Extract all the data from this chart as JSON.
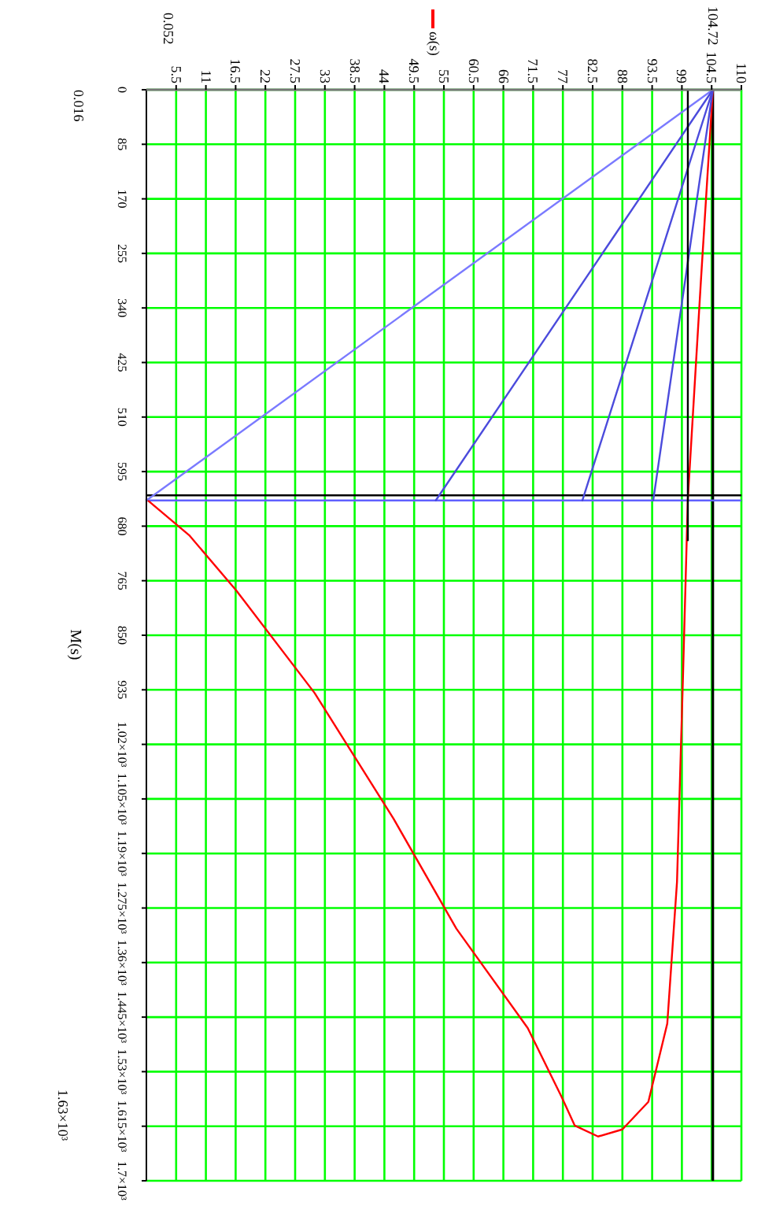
{
  "chart_data": {
    "type": "line",
    "ylabel": "M(s)",
    "ylim": [
      1700,
      0
    ],
    "yticks": [
      0,
      85,
      170,
      255,
      340,
      425,
      510,
      595,
      680,
      765,
      850,
      935,
      {
        "value": 1020,
        "label": "1.02×10³"
      },
      {
        "value": 1105,
        "label": "1.105×10³"
      },
      {
        "value": 1190,
        "label": "1.19×10³"
      },
      {
        "value": 1275,
        "label": "1.275×10³"
      },
      {
        "value": 1360,
        "label": "1.36×10³"
      },
      {
        "value": 1445,
        "label": "1.445×10³"
      },
      {
        "value": 1530,
        "label": "1.53×10³"
      },
      {
        "value": 1615,
        "label": "1.615×10³"
      },
      {
        "value": 1700,
        "label": "1.7×10³"
      }
    ],
    "xlim": [
      0,
      110
    ],
    "xticks": [
      5.5,
      11,
      16.5,
      22,
      27.5,
      33,
      38.5,
      44,
      49.5,
      55,
      60.5,
      66,
      71.5,
      77,
      82.5,
      88,
      93.5,
      99,
      104.5,
      110
    ],
    "grid": true,
    "legend": "top",
    "series": [
      {
        "name": "ω(s)",
        "color": "#ff0000",
        "x": [
          104.72,
          102.5,
          100.1,
          99.2,
          98.1,
          96.3,
          92.8,
          88,
          83.5,
          79.2,
          76.8,
          70.5,
          57.3,
          45.7,
          31.1,
          16.6,
          7.9,
          0
        ],
        "values": [
          0,
          300,
          638,
          915,
          1234,
          1455,
          1577,
          1620,
          1631,
          1614,
          1570,
          1462,
          1307,
          1136,
          940,
          780,
          694,
          638
        ]
      },
      {
        "color": "#7a7aff",
        "x": [
          104.72,
          0
        ],
        "values": [
          0,
          640
        ]
      },
      {
        "color": "#4b4bdc",
        "x": [
          104.72,
          53.5
        ],
        "values": [
          0,
          640
        ]
      },
      {
        "color": "#4b4bdc",
        "x": [
          104.72,
          80.6
        ],
        "values": [
          0,
          640
        ]
      },
      {
        "color": "#4b4bdc",
        "x": [
          104.72,
          93.7
        ],
        "values": [
          0,
          640
        ]
      },
      {
        "color": "#000000",
        "x": [
          100.1,
          100.1
        ],
        "values": [
          0,
          702
        ]
      }
    ],
    "ref_lines": [
      {
        "axis": "x",
        "value": 104.72,
        "label": "104.72",
        "color": "#000000"
      },
      {
        "axis": "y",
        "value": 632,
        "color": "#000000"
      },
      {
        "axis": "y",
        "value": 640,
        "color": "#6060ff"
      }
    ],
    "annotations": [
      "0.052",
      "0.016",
      "1.63×10³"
    ]
  }
}
